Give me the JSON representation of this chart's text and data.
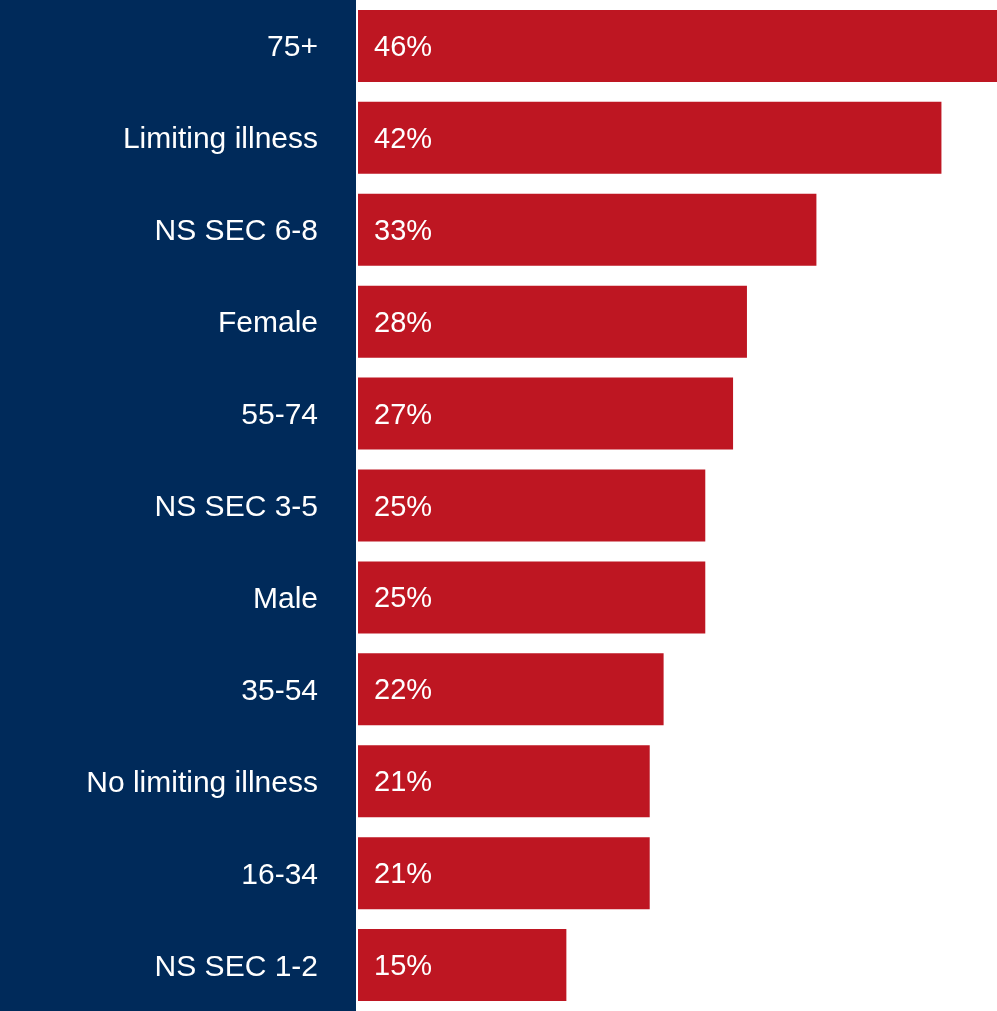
{
  "chart_data": {
    "type": "bar",
    "orientation": "horizontal",
    "categories": [
      "75+",
      "Limiting illness",
      "NS SEC 6-8",
      "Female",
      "55-74",
      "NS SEC 3-5",
      "Male",
      "35-54",
      "No limiting illness",
      "16-34",
      "NS SEC 1-2"
    ],
    "values": [
      46,
      42,
      33,
      28,
      27,
      25,
      25,
      22,
      21,
      21,
      15
    ],
    "value_labels": [
      "46%",
      "42%",
      "33%",
      "28%",
      "27%",
      "25%",
      "25%",
      "22%",
      "21%",
      "21%",
      "15%"
    ],
    "color": "#be1622"
  }
}
